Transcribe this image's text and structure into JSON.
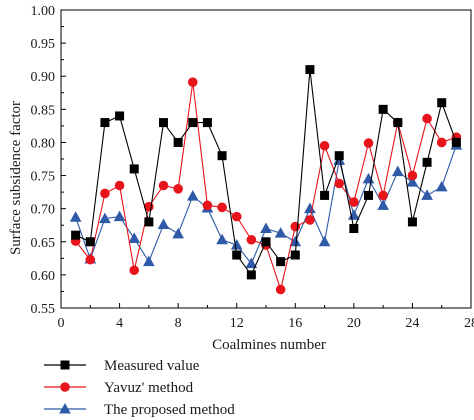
{
  "chart_data": {
    "type": "line",
    "xlabel": "Coalmines number",
    "ylabel": "Surface subsidence factor",
    "xlim": [
      0,
      28
    ],
    "ylim": [
      0.55,
      1.0
    ],
    "xticks": [
      0,
      4,
      8,
      12,
      16,
      20,
      24,
      28
    ],
    "yticks": [
      0.55,
      0.6,
      0.65,
      0.7,
      0.75,
      0.8,
      0.85,
      0.9,
      0.95,
      1.0
    ],
    "xtick_labels": [
      "0",
      "4",
      "8",
      "12",
      "16",
      "20",
      "24",
      "28"
    ],
    "ytick_labels": [
      "0.55",
      "0.60",
      "0.65",
      "0.70",
      "0.75",
      "0.80",
      "0.85",
      "0.90",
      "0.95",
      "1.00"
    ],
    "x": [
      1,
      2,
      3,
      4,
      5,
      6,
      7,
      8,
      9,
      10,
      11,
      12,
      13,
      14,
      15,
      16,
      17,
      18,
      19,
      20,
      21,
      22,
      23,
      24,
      25,
      26,
      27
    ],
    "legend_position": "below",
    "series": [
      {
        "name": "Measured value",
        "color": "#000000",
        "marker": "square",
        "values": [
          0.66,
          0.65,
          0.83,
          0.84,
          0.76,
          0.68,
          0.83,
          0.8,
          0.83,
          0.83,
          0.78,
          0.63,
          0.6,
          0.65,
          0.62,
          0.63,
          0.91,
          0.72,
          0.78,
          0.67,
          0.72,
          0.85,
          0.83,
          0.68,
          0.77,
          0.86,
          0.8
        ]
      },
      {
        "name": "Yavuz' method",
        "color": "#e8141c",
        "marker": "circle",
        "values": [
          0.651,
          0.623,
          0.723,
          0.735,
          0.607,
          0.703,
          0.735,
          0.73,
          0.891,
          0.705,
          0.702,
          0.688,
          0.653,
          0.645,
          0.578,
          0.673,
          0.683,
          0.795,
          0.738,
          0.71,
          0.799,
          0.72,
          0.83,
          0.75,
          0.836,
          0.8,
          0.808
        ]
      },
      {
        "name": "The proposed method",
        "color": "#2f5aa8",
        "marker": "triangle",
        "values": [
          0.687,
          0.624,
          0.685,
          0.688,
          0.655,
          0.62,
          0.676,
          0.662,
          0.719,
          0.701,
          0.653,
          0.645,
          0.617,
          0.67,
          0.663,
          0.65,
          0.7,
          0.65,
          0.773,
          0.69,
          0.745,
          0.705,
          0.756,
          0.74,
          0.72,
          0.733,
          0.796
        ]
      }
    ]
  }
}
